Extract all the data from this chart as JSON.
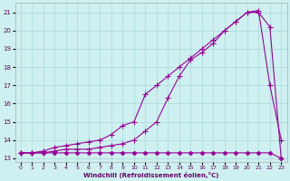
{
  "xlabel": "Windchill (Refroidissement éolien,°C)",
  "background_color": "#cff0f0",
  "grid_color": "#a8d8d8",
  "line_color": "#990099",
  "xlim": [
    -0.5,
    23.5
  ],
  "ylim": [
    12.8,
    21.5
  ],
  "yticks": [
    13,
    14,
    15,
    16,
    17,
    18,
    19,
    20,
    21
  ],
  "xticks": [
    0,
    1,
    2,
    3,
    4,
    5,
    6,
    7,
    8,
    9,
    10,
    11,
    12,
    13,
    14,
    15,
    16,
    17,
    18,
    19,
    20,
    21,
    22,
    23
  ],
  "line1_x": [
    0,
    1,
    2,
    3,
    4,
    5,
    6,
    7,
    8,
    9,
    10,
    11,
    12,
    13,
    14,
    15,
    16,
    17,
    18,
    19,
    20,
    21,
    22,
    23
  ],
  "line1_y": [
    13.3,
    13.3,
    13.3,
    13.3,
    13.3,
    13.3,
    13.3,
    13.3,
    13.3,
    13.3,
    13.3,
    13.3,
    13.3,
    13.3,
    13.3,
    13.3,
    13.3,
    13.3,
    13.3,
    13.3,
    13.3,
    13.3,
    13.3,
    13.0
  ],
  "line2_x": [
    0,
    1,
    2,
    3,
    4,
    5,
    6,
    7,
    8,
    9,
    10,
    11,
    12,
    13,
    14,
    15,
    16,
    17,
    18,
    19,
    20,
    21,
    22,
    23
  ],
  "line2_y": [
    13.3,
    13.3,
    13.4,
    13.6,
    13.7,
    13.8,
    13.9,
    14.0,
    14.3,
    14.8,
    15.0,
    16.5,
    17.0,
    17.5,
    18.0,
    18.5,
    19.0,
    19.5,
    20.0,
    20.5,
    21.0,
    21.0,
    20.2,
    13.0
  ],
  "line3_x": [
    0,
    1,
    2,
    3,
    4,
    5,
    6,
    7,
    8,
    9,
    10,
    11,
    12,
    13,
    14,
    15,
    16,
    17,
    18,
    19,
    20,
    21,
    22,
    23
  ],
  "line3_y": [
    13.3,
    13.3,
    13.3,
    13.4,
    13.5,
    13.5,
    13.5,
    13.6,
    13.7,
    13.8,
    14.0,
    14.5,
    15.0,
    16.3,
    17.5,
    18.4,
    18.8,
    19.3,
    20.0,
    20.5,
    21.0,
    21.1,
    17.0,
    14.0
  ]
}
